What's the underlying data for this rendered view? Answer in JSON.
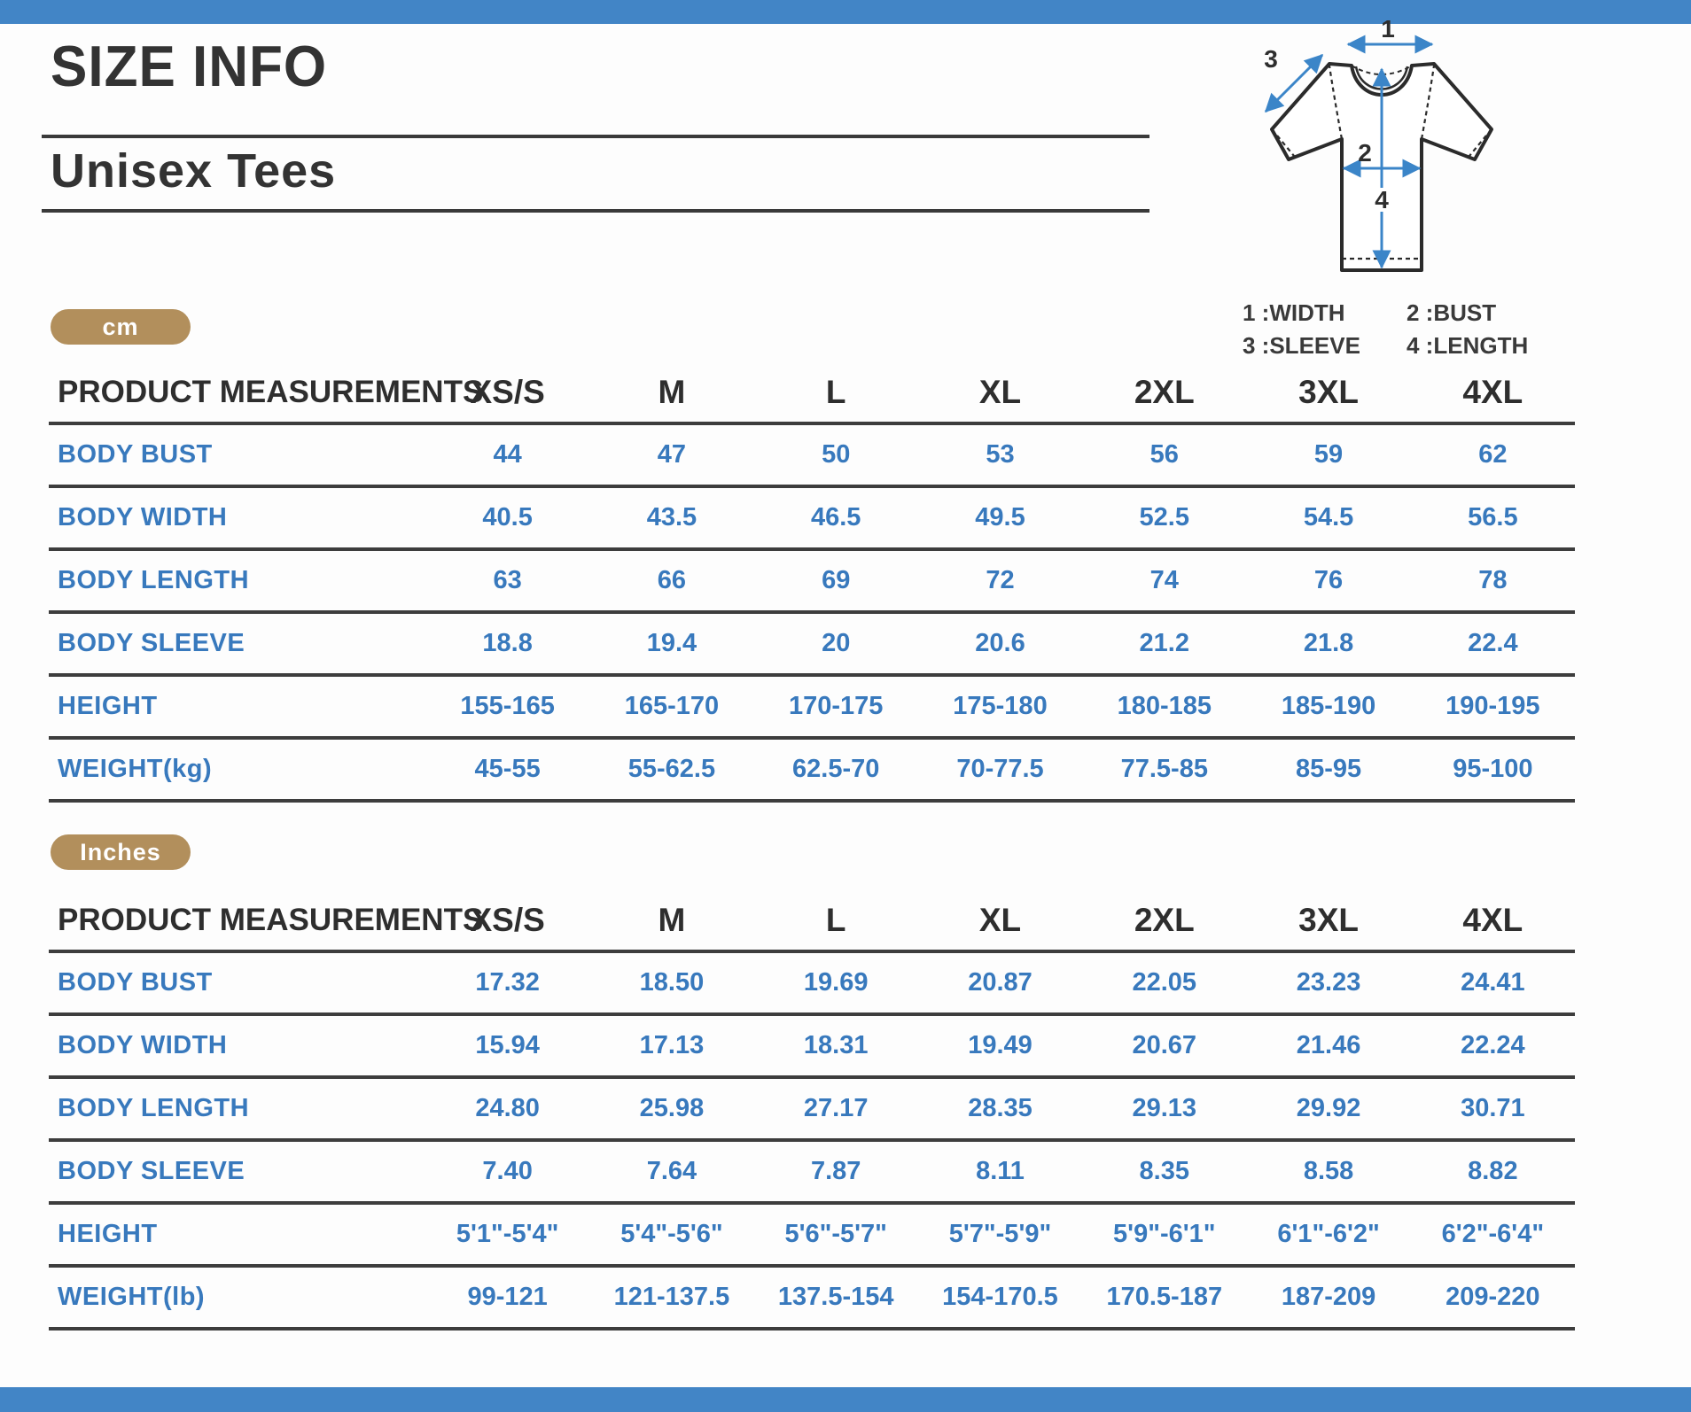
{
  "page": {
    "title": "SIZE INFO",
    "subtitle": "Unisex Tees",
    "accent_blue": "#4285c6",
    "text_blue": "#3879bd",
    "line_dark": "#3d3d3d",
    "badge_tan": "#b28f5c"
  },
  "diagram": {
    "markers": {
      "width": "1",
      "bust": "2",
      "sleeve": "3",
      "length": "4"
    },
    "legend": [
      "1 :WIDTH",
      "2 :BUST",
      "3 :SLEEVE",
      "4 :LENGTH"
    ]
  },
  "tables": [
    {
      "unit_badge": "cm",
      "header": [
        "PRODUCT MEASUREMENTS",
        "XS/S",
        "M",
        "L",
        "XL",
        "2XL",
        "3XL",
        "4XL"
      ],
      "rows": [
        {
          "label": "BODY BUST",
          "values": [
            "44",
            "47",
            "50",
            "53",
            "56",
            "59",
            "62"
          ]
        },
        {
          "label": "BODY WIDTH",
          "values": [
            "40.5",
            "43.5",
            "46.5",
            "49.5",
            "52.5",
            "54.5",
            "56.5"
          ]
        },
        {
          "label": "BODY LENGTH",
          "values": [
            "63",
            "66",
            "69",
            "72",
            "74",
            "76",
            "78"
          ]
        },
        {
          "label": "BODY SLEEVE",
          "values": [
            "18.8",
            "19.4",
            "20",
            "20.6",
            "21.2",
            "21.8",
            "22.4"
          ]
        },
        {
          "label": "HEIGHT",
          "values": [
            "155-165",
            "165-170",
            "170-175",
            "175-180",
            "180-185",
            "185-190",
            "190-195"
          ]
        },
        {
          "label": "WEIGHT(kg)",
          "values": [
            "45-55",
            "55-62.5",
            "62.5-70",
            "70-77.5",
            "77.5-85",
            "85-95",
            "95-100"
          ]
        }
      ]
    },
    {
      "unit_badge": "Inches",
      "header": [
        "PRODUCT MEASUREMENTS",
        "XS/S",
        "M",
        "L",
        "XL",
        "2XL",
        "3XL",
        "4XL"
      ],
      "rows": [
        {
          "label": "BODY BUST",
          "values": [
            "17.32",
            "18.50",
            "19.69",
            "20.87",
            "22.05",
            "23.23",
            "24.41"
          ]
        },
        {
          "label": "BODY WIDTH",
          "values": [
            "15.94",
            "17.13",
            "18.31",
            "19.49",
            "20.67",
            "21.46",
            "22.24"
          ]
        },
        {
          "label": "BODY LENGTH",
          "values": [
            "24.80",
            "25.98",
            "27.17",
            "28.35",
            "29.13",
            "29.92",
            "30.71"
          ]
        },
        {
          "label": "BODY SLEEVE",
          "values": [
            "7.40",
            "7.64",
            "7.87",
            "8.11",
            "8.35",
            "8.58",
            "8.82"
          ]
        },
        {
          "label": "HEIGHT",
          "values": [
            "5'1\"-5'4\"",
            "5'4\"-5'6\"",
            "5'6\"-5'7\"",
            "5'7\"-5'9\"",
            "5'9\"-6'1\"",
            "6'1\"-6'2\"",
            "6'2\"-6'4\""
          ]
        },
        {
          "label": "WEIGHT(lb)",
          "values": [
            "99-121",
            "121-137.5",
            "137.5-154",
            "154-170.5",
            "170.5-187",
            "187-209",
            "209-220"
          ]
        }
      ]
    }
  ]
}
